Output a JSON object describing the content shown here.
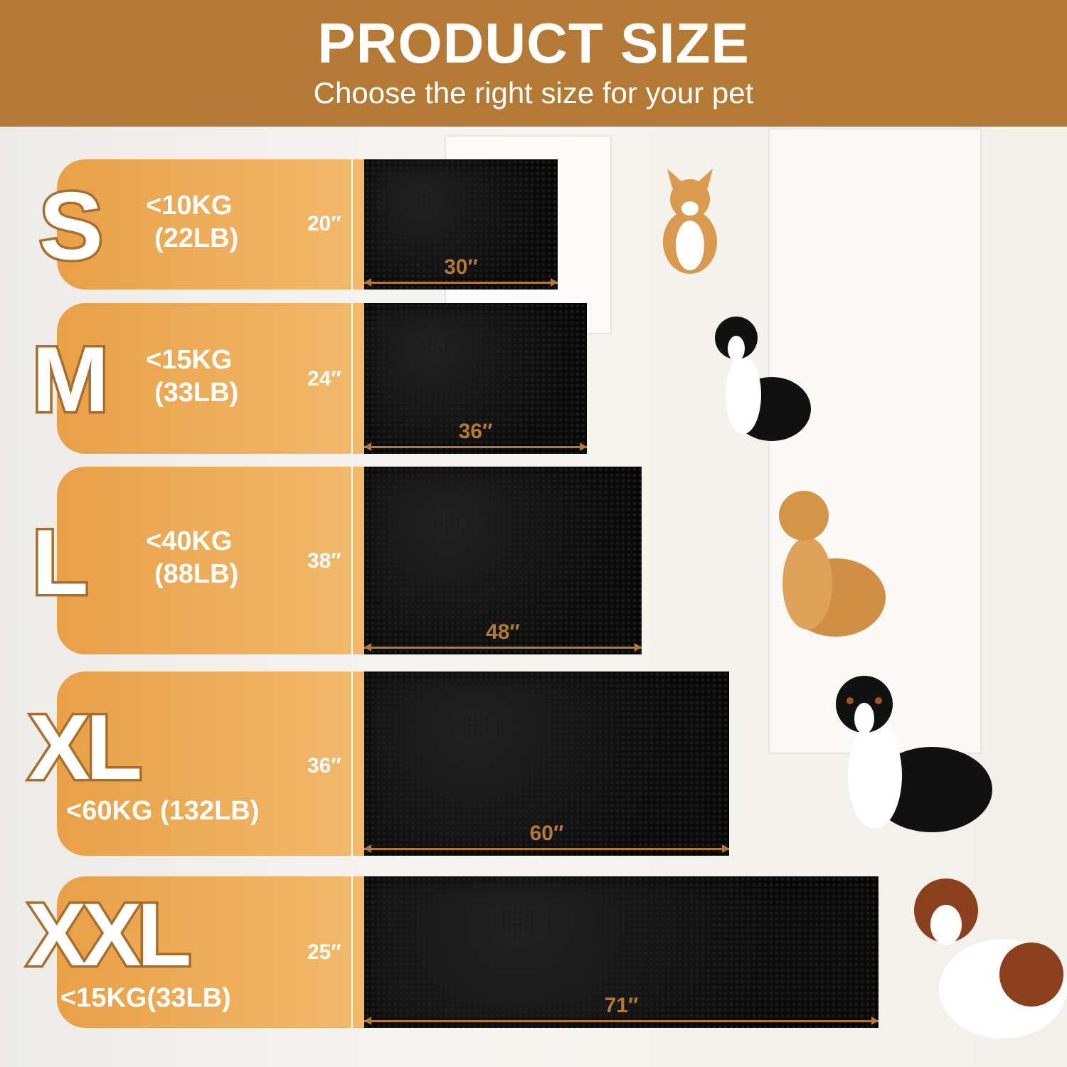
{
  "header": {
    "title": "PRODUCT SIZE",
    "subtitle": "Choose the right size for your pet"
  },
  "colors": {
    "header": "#b47a35",
    "panel_start": "#e9a047",
    "panel_end": "#f2b96c",
    "mat": "#0c0c0c",
    "measure": "#b47a35"
  },
  "sizes": [
    {
      "letter": "S",
      "weight_kg": "<10KG",
      "weight_lb": "(22LB)",
      "height": "20″",
      "width": "30″",
      "dog": "corgi"
    },
    {
      "letter": "M",
      "weight_kg": "<15KG",
      "weight_lb": "(33LB)",
      "height": "24″",
      "width": "36″",
      "dog": "border-collie"
    },
    {
      "letter": "L",
      "weight_kg": "<40KG",
      "weight_lb": "(88LB)",
      "height": "38″",
      "width": "48″",
      "dog": "golden-retriever"
    },
    {
      "letter": "XL",
      "weight": "<60KG (132LB)",
      "height": "36″",
      "width": "60″",
      "dog": "bernese-mountain-dog"
    },
    {
      "letter": "XXL",
      "weight": "<15KG(33LB)",
      "height": "25″",
      "width": "71″",
      "dog": "saint-bernard"
    }
  ]
}
